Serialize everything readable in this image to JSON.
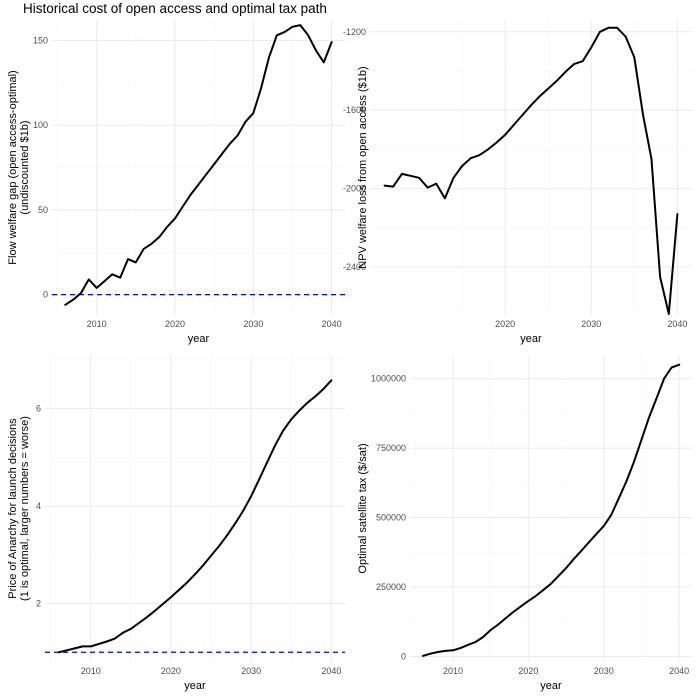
{
  "title": "Historical cost of open access and optimal tax path",
  "chart_data": [
    {
      "type": "line",
      "title": "",
      "xlabel": "year",
      "ylabel": [
        "Flow welfare gap (open access-optimal)",
        "(undiscounted $1b)"
      ],
      "xlim": [
        2004.3,
        2041.7
      ],
      "ylim": [
        -12,
        162
      ],
      "xticks": [
        2010,
        2020,
        2030,
        2040
      ],
      "yticks": [
        0,
        50,
        100,
        150
      ],
      "hline": 0,
      "x": [
        2006,
        2007,
        2008,
        2009,
        2010,
        2011,
        2012,
        2013,
        2014,
        2015,
        2016,
        2017,
        2018,
        2019,
        2020,
        2021,
        2022,
        2023,
        2024,
        2025,
        2026,
        2027,
        2028,
        2029,
        2030,
        2031,
        2032,
        2033,
        2034,
        2035,
        2036,
        2037,
        2038,
        2039,
        2040
      ],
      "y": [
        -6,
        -3,
        1,
        9,
        4,
        8,
        12,
        10,
        21,
        19,
        27,
        30,
        34,
        40,
        45,
        52,
        59,
        65,
        71,
        77,
        83,
        89,
        94,
        102,
        107,
        122,
        140,
        153,
        155,
        158,
        159,
        153,
        144,
        137,
        149
      ]
    },
    {
      "type": "line",
      "title": "",
      "xlabel": "year",
      "ylabel": [
        "NPV welfare loss from open access ($1b)"
      ],
      "xlim": [
        2004.3,
        2041.7
      ],
      "ylim": [
        -2645,
        -1140
      ],
      "xticks": [
        2020,
        2030,
        2040
      ],
      "yticks": [
        -2400,
        -2000,
        -1600,
        -1200
      ],
      "hline": null,
      "x": [
        2006,
        2007,
        2008,
        2009,
        2010,
        2011,
        2012,
        2013,
        2014,
        2015,
        2016,
        2017,
        2018,
        2019,
        2020,
        2021,
        2022,
        2023,
        2024,
        2025,
        2026,
        2027,
        2028,
        2029,
        2030,
        2031,
        2032,
        2033,
        2034,
        2035,
        2036,
        2037,
        2038,
        2039,
        2040
      ],
      "y": [
        -1985,
        -1990,
        -1925,
        -1935,
        -1945,
        -1995,
        -1975,
        -2050,
        -1945,
        -1885,
        -1845,
        -1830,
        -1800,
        -1765,
        -1725,
        -1675,
        -1625,
        -1575,
        -1530,
        -1490,
        -1450,
        -1405,
        -1365,
        -1350,
        -1280,
        -1200,
        -1180,
        -1180,
        -1225,
        -1330,
        -1620,
        -1850,
        -2450,
        -2640,
        -2130
      ]
    },
    {
      "type": "line",
      "title": "",
      "xlabel": "year",
      "ylabel": [
        "Price of Anarchy for launch decisions",
        "(1 is optimal, larger numbers = worse)"
      ],
      "xlim": [
        2004.3,
        2041.7
      ],
      "ylim": [
        0.8,
        7.1
      ],
      "xticks": [
        2010,
        2020,
        2030,
        2040
      ],
      "yticks": [
        2,
        4,
        6
      ],
      "hline": 1,
      "x": [
        2006,
        2007,
        2008,
        2009,
        2010,
        2011,
        2012,
        2013,
        2014,
        2015,
        2016,
        2017,
        2018,
        2019,
        2020,
        2021,
        2022,
        2023,
        2024,
        2025,
        2026,
        2027,
        2028,
        2029,
        2030,
        2031,
        2032,
        2033,
        2034,
        2035,
        2036,
        2037,
        2038,
        2039,
        2040
      ],
      "y": [
        1.0,
        1.04,
        1.08,
        1.12,
        1.12,
        1.17,
        1.22,
        1.28,
        1.4,
        1.48,
        1.6,
        1.72,
        1.85,
        1.99,
        2.13,
        2.28,
        2.43,
        2.6,
        2.78,
        2.98,
        3.18,
        3.4,
        3.64,
        3.9,
        4.2,
        4.55,
        4.9,
        5.25,
        5.55,
        5.78,
        5.96,
        6.12,
        6.25,
        6.4,
        6.58
      ]
    },
    {
      "type": "line",
      "title": "",
      "xlabel": "year",
      "ylabel": [
        "Optimal satellite tax ($/sat)"
      ],
      "xlim": [
        2004.3,
        2041.7
      ],
      "ylim": [
        -20000,
        1085000
      ],
      "xticks": [
        2010,
        2020,
        2030,
        2040
      ],
      "yticks": [
        0,
        250000,
        500000,
        750000,
        1000000
      ],
      "yticklabels": [
        "0",
        "250000",
        "500000",
        "750000",
        "1000000"
      ],
      "hline": null,
      "x": [
        2006,
        2007,
        2008,
        2009,
        2010,
        2011,
        2012,
        2013,
        2014,
        2015,
        2016,
        2017,
        2018,
        2019,
        2020,
        2021,
        2022,
        2023,
        2024,
        2025,
        2026,
        2027,
        2028,
        2029,
        2030,
        2031,
        2032,
        2033,
        2034,
        2035,
        2036,
        2037,
        2038,
        2039,
        2040
      ],
      "y": [
        2000,
        10000,
        16000,
        20000,
        22000,
        30000,
        42000,
        52000,
        70000,
        95000,
        115000,
        138000,
        160000,
        180000,
        200000,
        218000,
        240000,
        262000,
        290000,
        318000,
        350000,
        380000,
        410000,
        440000,
        470000,
        510000,
        570000,
        630000,
        700000,
        780000,
        860000,
        930000,
        1000000,
        1040000,
        1050000
      ]
    }
  ]
}
